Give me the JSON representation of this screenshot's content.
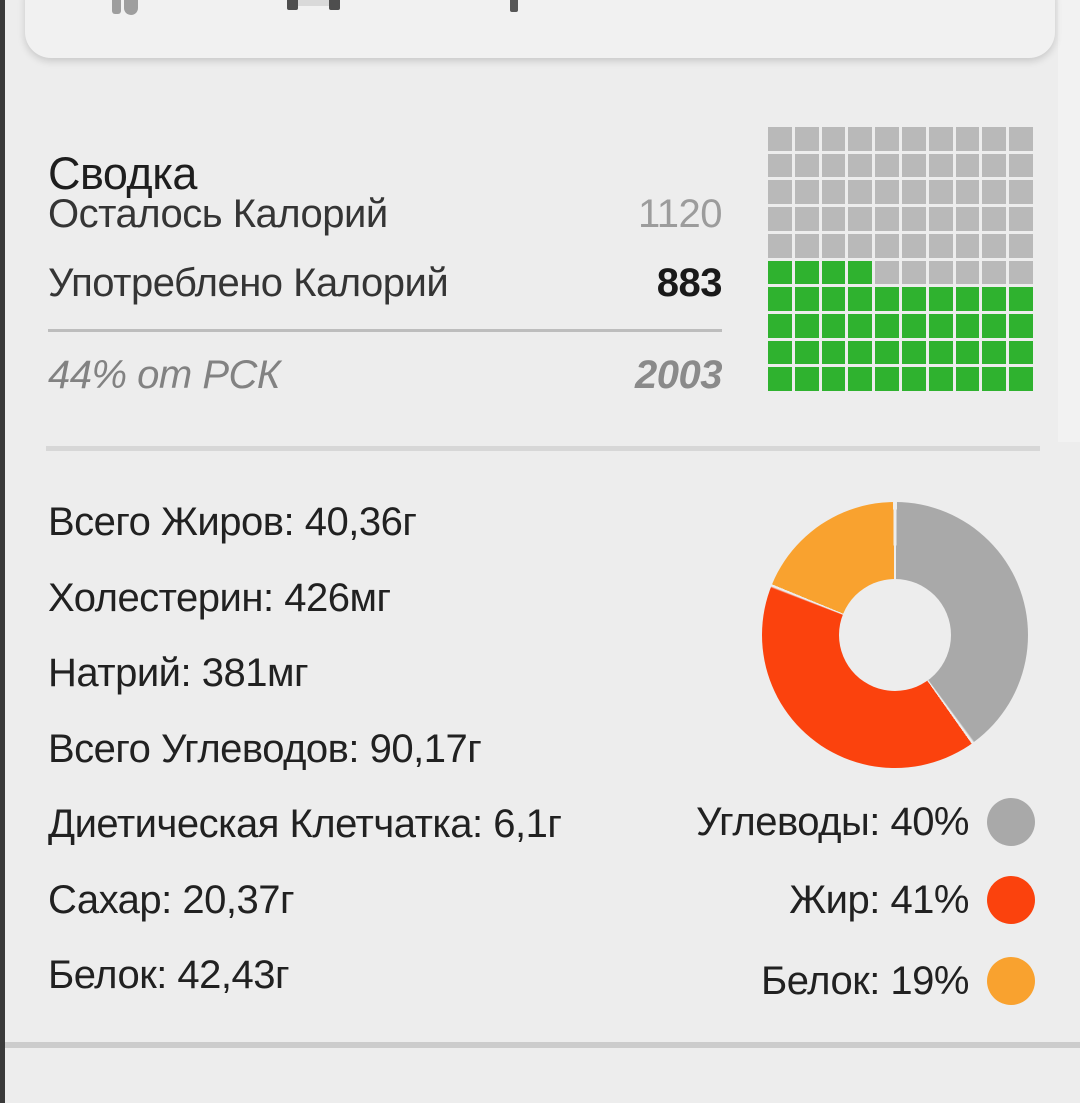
{
  "page": {
    "background": "#ededed",
    "left_edge_color": "#3a3a3a"
  },
  "toolbar": {
    "icons": [
      {
        "name": "utensils-icon"
      },
      {
        "name": "barbell-icon"
      },
      {
        "name": "pencil-icon"
      }
    ]
  },
  "summary": {
    "title": "Сводка",
    "rows": [
      {
        "label": "Осталось Калорий",
        "value": "1120"
      },
      {
        "label": "Употреблено Калорий",
        "value": "883"
      }
    ],
    "rdi_row": {
      "label": "44% от РСК",
      "value": "2003"
    }
  },
  "nutrition": [
    {
      "label": "Всего Жиров",
      "value": "40,36г",
      "text": "Всего Жиров: 40,36г"
    },
    {
      "label": "Холестерин",
      "value": "426мг",
      "text": "Холестерин: 426мг"
    },
    {
      "label": "Натрий",
      "value": "381мг",
      "text": "Натрий: 381мг"
    },
    {
      "label": "Всего Углеводов",
      "value": "90,17г",
      "text": "Всего Углеводов: 90,17г"
    },
    {
      "label": "Диетическая Клетчатка",
      "value": "6,1г",
      "text": "Диетическая Клетчатка: 6,1г"
    },
    {
      "label": "Сахар",
      "value": "20,37г",
      "text": "Сахар: 20,37г"
    },
    {
      "label": "Белок",
      "value": "42,43г",
      "text": "Белок: 42,43г"
    }
  ],
  "chart_data": [
    {
      "type": "waffle",
      "rows": 10,
      "columns": 10,
      "total_cells": 100,
      "filled_cells": 44,
      "filled_percent": 44,
      "fill_origin": "bottom-left",
      "filled_color": "#2fb22f",
      "empty_color": "#b9b9b9"
    },
    {
      "type": "pie",
      "donut": true,
      "start_angle_deg": 0,
      "direction": "clockwise",
      "hole_ratio": 0.42,
      "gap_color": "#ededed",
      "series": [
        {
          "name": "Углеводы",
          "value": 40,
          "color": "#a9a9a9"
        },
        {
          "name": "Жир",
          "value": 41,
          "color": "#fb420d"
        },
        {
          "name": "Белок",
          "value": 19,
          "color": "#f9a22f"
        }
      ],
      "legend_position": "right-aligned-below"
    }
  ],
  "legend": [
    {
      "text": "Углеводы: 40%",
      "color": "#a9a9a9"
    },
    {
      "text": "Жир: 41%",
      "color": "#fb420d"
    },
    {
      "text": "Белок: 19%",
      "color": "#f9a22f"
    }
  ]
}
